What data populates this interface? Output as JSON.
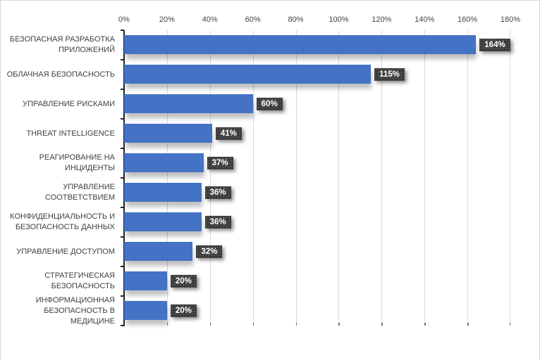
{
  "chart_data": {
    "type": "bar",
    "orientation": "horizontal",
    "title": "",
    "xlabel": "",
    "ylabel": "",
    "xlim": [
      0,
      180
    ],
    "grid": true,
    "legend": false,
    "axis_ticks": [
      "0%",
      "20%",
      "40%",
      "60%",
      "80%",
      "100%",
      "120%",
      "140%",
      "160%",
      "180%"
    ],
    "categories": [
      "БЕЗОПАСНАЯ РАЗРАБОТКА ПРИЛОЖЕНИЙ",
      "ОБЛАЧНАЯ БЕЗОПАСНОСТЬ",
      "УПРАВЛЕНИЕ РИСКАМИ",
      "THREAT INTELLIGENCE",
      "РЕАГИРОВАНИЕ НА ИНЦИДЕНТЫ",
      "УПРАВЛЕНИЕ СООТВЕТСТВИЕМ",
      "КОНФИДЕНЦИАЛЬНОСТЬ И БЕЗОПАСНОСТЬ ДАННЫХ",
      "УПРАВЛЕНИЕ ДОСТУПОМ",
      "СТРАТЕГИЧЕСКАЯ БЕЗОПАСНОСТЬ",
      "ИНФОРМАЦИОННАЯ БЕЗОПАСНОСТЬ В МЕДИЦИНЕ"
    ],
    "values": [
      164,
      115,
      60,
      41,
      37,
      36,
      36,
      32,
      20,
      20
    ],
    "value_labels": [
      "164%",
      "115%",
      "60%",
      "41%",
      "37%",
      "36%",
      "36%",
      "32%",
      "20%",
      "20%"
    ],
    "colors": {
      "bar": "#4472C4",
      "value_label_box": "#3B3B3B",
      "value_label_text": "#FFFFFF",
      "gridline": "#D9D9D9",
      "axis_line": "#262626",
      "tick_text": "#444444",
      "category_text": "#404040",
      "background": "#FFFFFF"
    }
  }
}
